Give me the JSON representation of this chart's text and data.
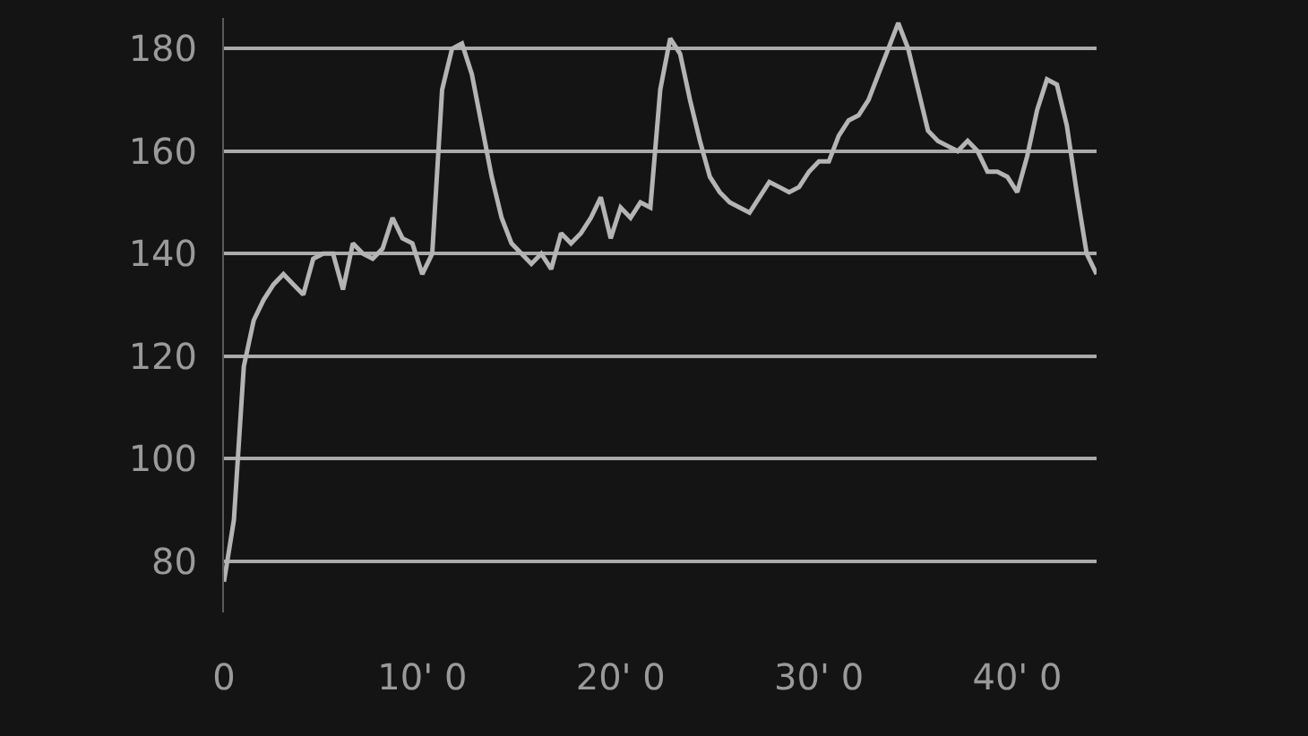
{
  "chart_data": {
    "type": "line",
    "color": "#b4b4b4",
    "categories": [
      "0",
      null,
      null,
      null,
      null,
      null,
      null,
      null,
      null,
      null,
      null,
      null,
      null,
      null,
      null,
      null,
      null,
      null,
      null,
      null,
      "10' 0",
      null,
      null,
      null,
      null,
      null,
      null,
      null,
      null,
      null,
      null,
      null,
      null,
      null,
      null,
      null,
      null,
      null,
      null,
      null,
      "20' 0",
      null,
      null,
      null,
      null,
      null,
      null,
      null,
      null,
      null,
      null,
      null,
      null,
      null,
      null,
      null,
      null,
      null,
      null,
      null,
      "30' 0",
      null,
      null,
      null,
      null,
      null,
      null,
      null,
      null,
      null,
      null,
      null,
      null,
      null,
      null,
      null,
      null,
      null,
      null,
      null,
      "40' 0",
      null,
      null,
      null,
      null,
      null,
      null,
      null,
      null
    ],
    "values": [
      76,
      88,
      118,
      127,
      131,
      134,
      136,
      134,
      132,
      139,
      140,
      140,
      133,
      142,
      140,
      139,
      141,
      147,
      143,
      142,
      136,
      140,
      172,
      180,
      181,
      175,
      165,
      155,
      147,
      142,
      140,
      138,
      140,
      137,
      144,
      142,
      144,
      147,
      151,
      143,
      149,
      147,
      150,
      149,
      172,
      182,
      179,
      170,
      162,
      155,
      152,
      150,
      149,
      148,
      151,
      154,
      153,
      152,
      153,
      156,
      158,
      158,
      163,
      166,
      167,
      170,
      175,
      180,
      185,
      180,
      172,
      164,
      162,
      161,
      160,
      162,
      160,
      156,
      156,
      155,
      152,
      159,
      168,
      174,
      173,
      165,
      152,
      140,
      136
    ],
    "ylim": [
      70,
      186
    ],
    "yticks": [
      80,
      100,
      120,
      140,
      160,
      180
    ],
    "grid": "y",
    "legend": false,
    "marker": "none",
    "line_style": "solid"
  }
}
